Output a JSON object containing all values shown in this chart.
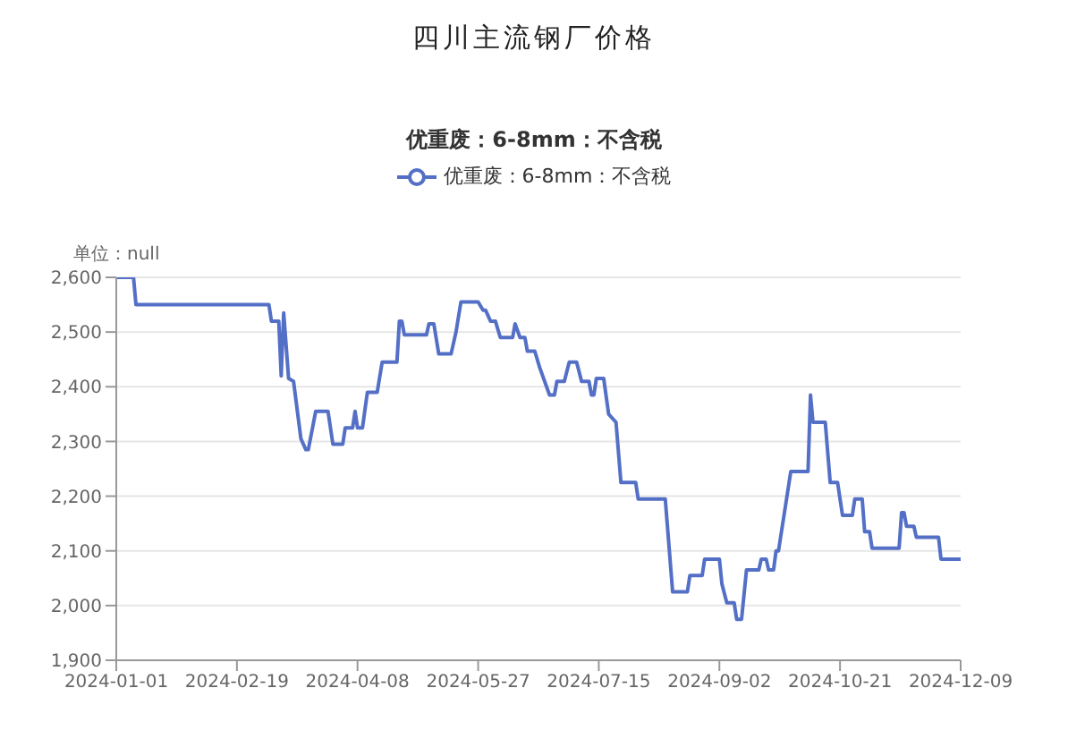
{
  "chart_data": {
    "type": "line",
    "title": "四川主流钢厂价格",
    "subtitle": "优重废：6-8mm：不含税",
    "ylabel": "单位：null",
    "x": [
      "2024-01-01",
      "2024-01-08",
      "2024-01-09",
      "2024-03-03",
      "2024-03-04",
      "2024-03-07",
      "2024-03-08",
      "2024-03-09",
      "2024-03-11",
      "2024-03-13",
      "2024-03-16",
      "2024-03-18",
      "2024-03-19",
      "2024-03-22",
      "2024-03-27",
      "2024-03-28",
      "2024-03-29",
      "2024-04-02",
      "2024-04-03",
      "2024-04-06",
      "2024-04-07",
      "2024-04-08",
      "2024-04-10",
      "2024-04-12",
      "2024-04-16",
      "2024-04-18",
      "2024-04-24",
      "2024-04-25",
      "2024-04-26",
      "2024-04-27",
      "2024-05-06",
      "2024-05-07",
      "2024-05-09",
      "2024-05-11",
      "2024-05-16",
      "2024-05-18",
      "2024-05-20",
      "2024-05-27",
      "2024-05-29",
      "2024-05-30",
      "2024-06-01",
      "2024-06-03",
      "2024-06-05",
      "2024-06-10",
      "2024-06-11",
      "2024-06-13",
      "2024-06-15",
      "2024-06-16",
      "2024-06-19",
      "2024-06-21",
      "2024-06-25",
      "2024-06-27",
      "2024-06-28",
      "2024-07-01",
      "2024-07-03",
      "2024-07-06",
      "2024-07-08",
      "2024-07-11",
      "2024-07-12",
      "2024-07-13",
      "2024-07-14",
      "2024-07-17",
      "2024-07-19",
      "2024-07-22",
      "2024-07-24",
      "2024-07-30",
      "2024-07-31",
      "2024-08-11",
      "2024-08-14",
      "2024-08-20",
      "2024-08-21",
      "2024-08-26",
      "2024-08-27",
      "2024-09-02",
      "2024-09-03",
      "2024-09-05",
      "2024-09-08",
      "2024-09-09",
      "2024-09-11",
      "2024-09-13",
      "2024-09-18",
      "2024-09-19",
      "2024-09-21",
      "2024-09-22",
      "2024-09-24",
      "2024-09-25",
      "2024-09-26",
      "2024-10-01",
      "2024-10-08",
      "2024-10-09",
      "2024-10-10",
      "2024-10-15",
      "2024-10-17",
      "2024-10-20",
      "2024-10-21",
      "2024-10-22",
      "2024-10-26",
      "2024-10-27",
      "2024-10-30",
      "2024-10-31",
      "2024-11-02",
      "2024-11-03",
      "2024-11-14",
      "2024-11-15",
      "2024-11-16",
      "2024-11-17",
      "2024-11-20",
      "2024-11-21",
      "2024-11-30",
      "2024-12-01",
      "2024-12-09"
    ],
    "series": [
      {
        "name": "优重废：6-8mm：不含税",
        "color": "#5470c6",
        "values": [
          2600,
          2600,
          2550,
          2550,
          2520,
          2520,
          2420,
          2535,
          2415,
          2410,
          2305,
          2285,
          2285,
          2355,
          2355,
          2325,
          2295,
          2295,
          2325,
          2325,
          2355,
          2325,
          2325,
          2390,
          2390,
          2445,
          2445,
          2520,
          2520,
          2495,
          2495,
          2515,
          2515,
          2460,
          2460,
          2500,
          2555,
          2555,
          2540,
          2540,
          2520,
          2520,
          2490,
          2490,
          2515,
          2490,
          2490,
          2465,
          2465,
          2435,
          2385,
          2385,
          2410,
          2410,
          2445,
          2445,
          2410,
          2410,
          2385,
          2385,
          2415,
          2415,
          2350,
          2335,
          2225,
          2225,
          2195,
          2195,
          2025,
          2025,
          2055,
          2055,
          2085,
          2085,
          2040,
          2005,
          2005,
          1975,
          1975,
          2065,
          2065,
          2085,
          2085,
          2065,
          2065,
          2100,
          2100,
          2245,
          2245,
          2385,
          2335,
          2335,
          2225,
          2225,
          2195,
          2165,
          2165,
          2195,
          2195,
          2135,
          2135,
          2105,
          2105,
          2170,
          2170,
          2145,
          2145,
          2125,
          2125,
          2085,
          2085
        ]
      }
    ],
    "xlim": [
      "2024-01-01",
      "2024-12-09"
    ],
    "xticks": [
      "2024-01-01",
      "2024-02-19",
      "2024-04-08",
      "2024-05-27",
      "2024-07-15",
      "2024-09-02",
      "2024-10-21",
      "2024-12-09"
    ],
    "ylim": [
      1900,
      2600
    ],
    "yticks": [
      {
        "value": 1900,
        "label": "1,900"
      },
      {
        "value": 2000,
        "label": "2,000"
      },
      {
        "value": 2100,
        "label": "2,100"
      },
      {
        "value": 2200,
        "label": "2,200"
      },
      {
        "value": 2300,
        "label": "2,300"
      },
      {
        "value": 2400,
        "label": "2,400"
      },
      {
        "value": 2500,
        "label": "2,500"
      },
      {
        "value": 2600,
        "label": "2,600"
      }
    ],
    "grid": "y",
    "legend": "top",
    "marker": "none",
    "line_style": "solid"
  }
}
